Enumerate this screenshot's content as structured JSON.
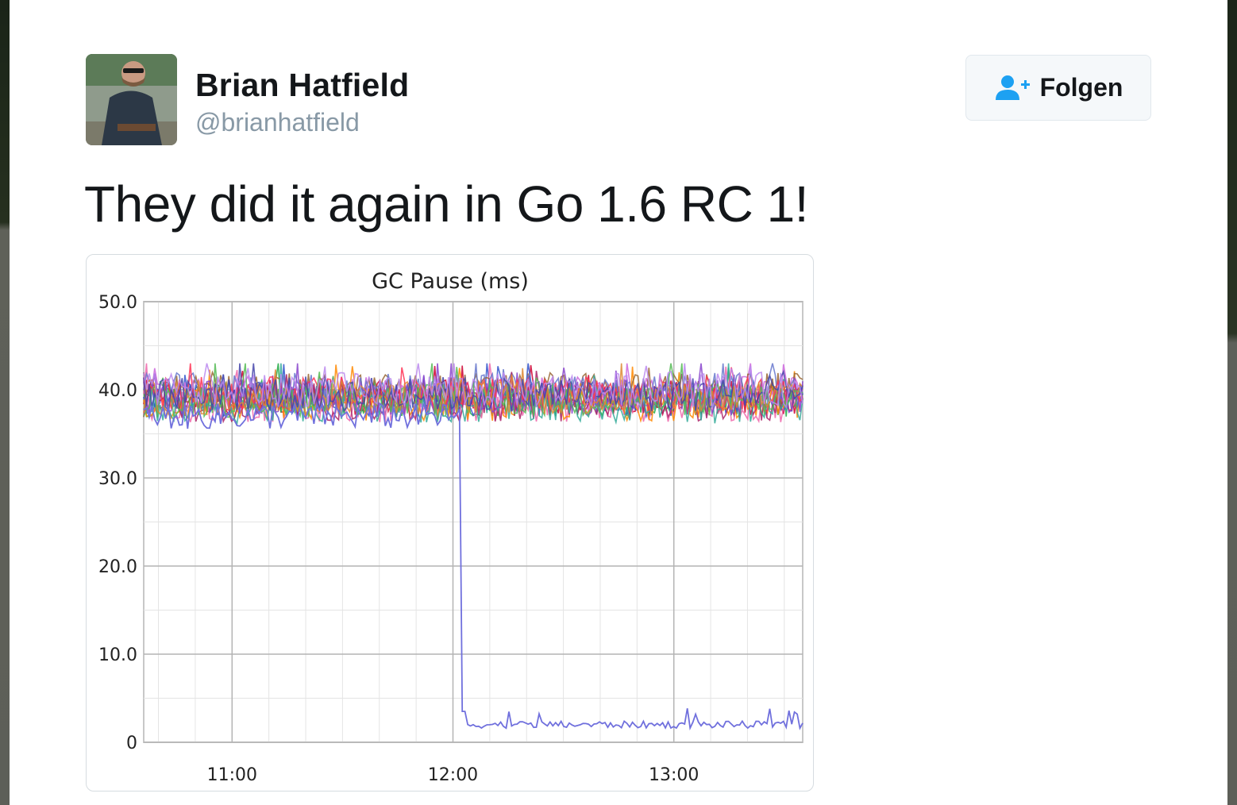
{
  "tweet": {
    "author": {
      "name": "Brian Hatfield",
      "handle": "@brianhatfield",
      "avatar_description_icon": "avatar-photo"
    },
    "follow_button": {
      "label": "Folgen",
      "icon": "add-user-icon",
      "icon_color": "#1da1f2"
    },
    "text": "They did it again in Go 1.6 RC 1!"
  },
  "chart_data": {
    "type": "line",
    "title": "GC Pause (ms)",
    "xlabel": "",
    "ylabel": "",
    "ylim": [
      0,
      50
    ],
    "yticks": [
      0,
      10,
      20,
      30,
      40,
      50
    ],
    "ytick_labels": [
      "0",
      "10.0",
      "20.0",
      "30.0",
      "40.0",
      "50.0"
    ],
    "xticks": [
      "11:00",
      "12:00",
      "13:00"
    ],
    "x_range": [
      "10:36",
      "13:35"
    ],
    "grid": true,
    "legend": "none",
    "series_count": 16,
    "series_colors": [
      "#cc0033",
      "#22aa44",
      "#3355cc",
      "#ee66aa",
      "#cc66dd",
      "#ff8800",
      "#996633",
      "#6677cc",
      "#aa2266",
      "#33aa99",
      "#8844cc",
      "#ff3355",
      "#55bb55",
      "#dd8833",
      "#4444aa",
      "#bb88ee"
    ],
    "band_range_before_drop": [
      35,
      43
    ],
    "highlighted_series": {
      "color": "#7070dd",
      "drop_time": "12:03",
      "level_before": 37,
      "level_after": 2
    }
  }
}
